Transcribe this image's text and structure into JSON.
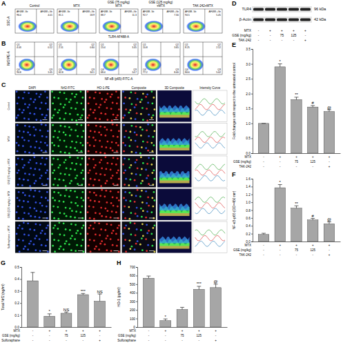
{
  "flow_cytometry": {
    "panel": "A",
    "y_label": "SSC-A",
    "x_label": "TLR4-AF488-A",
    "plots": [
      {
        "title": [
          "Control"
        ],
        "gates": [
          {
            "label": "AF488 -Ve",
            "value": "96.0"
          },
          {
            "label": "AF488 +Ve",
            "value": "4.01"
          }
        ]
      },
      {
        "title": [
          "MTX"
        ],
        "gates": [
          {
            "label": "AF488 -Ve",
            "value": "81.1"
          },
          {
            "label": "AF488 +Ve",
            "value": "18.9"
          }
        ]
      },
      {
        "title": [
          "GSE (75 mg/kg)",
          "MTX"
        ],
        "gates": [
          {
            "label": "AF488 -Ve",
            "value": "88.7"
          },
          {
            "label": "AF488 +Ve",
            "value": "11.3"
          }
        ]
      },
      {
        "title": [
          "GSE (125 mg/kg)",
          "+MTX"
        ],
        "gates": [
          {
            "label": "AF488 -Ve",
            "value": "92.7"
          },
          {
            "label": "AF488 +Ve",
            "value": "7.30"
          }
        ]
      },
      {
        "title": [
          "TAK-242+MTX"
        ],
        "gates": [
          {
            "label": "AF488 -Ve",
            "value": "94.5"
          },
          {
            "label": "AF488 +Ve",
            "value": "5.45"
          }
        ]
      }
    ]
  },
  "quadrant_plots": {
    "panel": "B",
    "y_label": "Nrf2-PE-A",
    "x_label": "NF-κB (p65)-FITC-A",
    "plots": [
      {
        "quadrants": [
          {
            "name": "Q1",
            "value": "4.03"
          },
          {
            "name": "Q2",
            "value": "0.12"
          },
          {
            "name": "Q3",
            "value": "1.05"
          },
          {
            "name": "Q4",
            "value": "94.8"
          }
        ]
      },
      {
        "quadrants": [
          {
            "name": "Q1",
            "value": "2.51"
          },
          {
            "name": "Q2",
            "value": "0.60"
          },
          {
            "name": "Q3",
            "value": "34.1"
          },
          {
            "name": "Q4",
            "value": "62.8"
          }
        ]
      },
      {
        "quadrants": [
          {
            "name": "Q1",
            "value": "13.4"
          },
          {
            "name": "Q2",
            "value": "3.45"
          },
          {
            "name": "Q3",
            "value": "14.7"
          },
          {
            "name": "Q4",
            "value": "68.4"
          }
        ]
      },
      {
        "quadrants": [
          {
            "name": "Q1",
            "value": "10.8"
          },
          {
            "name": "Q2",
            "value": "3.65"
          },
          {
            "name": "Q3",
            "value": "8.40"
          },
          {
            "name": "Q4",
            "value": "77.2"
          }
        ]
      },
      {
        "quadrants": [
          {
            "name": "Q1",
            "value": "8.25"
          },
          {
            "name": "Q2",
            "value": "2.12"
          },
          {
            "name": "Q3",
            "value": "5.02"
          },
          {
            "name": "Q4",
            "value": "84.6"
          }
        ]
      }
    ]
  },
  "microscopy": {
    "panel": "C",
    "columns": [
      "DAPI",
      "Nrf2-FITC",
      "HO-1-PE",
      "Composite",
      "3D Composite",
      "Intensity Curve"
    ],
    "rows": [
      "Control",
      "MTX",
      "GSE (75 mg/kg) + MTX",
      "GSE (125 mg/kg) + MTX",
      "Sulforaphane + MTX"
    ]
  },
  "western_blot": {
    "panel": "D",
    "bands": [
      {
        "label": "TLR4",
        "size": "96 kDa"
      },
      {
        "label": "β-Actin",
        "size": "42 kDa"
      }
    ],
    "treatments": [
      {
        "label": "MTX",
        "values": [
          "-",
          "+",
          "+",
          "+",
          "+"
        ]
      },
      {
        "label": "GSE (mg/kg)",
        "values": [
          "-",
          "-",
          "75",
          "125",
          "-"
        ]
      },
      {
        "label": "TAK-242",
        "values": [
          "-",
          "-",
          "-",
          "-",
          "+"
        ]
      }
    ]
  },
  "chart_data": [
    {
      "panel": "E",
      "type": "bar",
      "y_label": "Fold changes with respect to the untreated control",
      "categories": [
        null,
        null,
        null,
        null,
        null
      ],
      "values": [
        1.0,
        2.9,
        1.8,
        1.55,
        1.4
      ],
      "errors": [
        0,
        0.1,
        0.08,
        0.05,
        0.06
      ],
      "annotations": [
        null,
        "*",
        "**",
        "#",
        "@"
      ],
      "treatments": [
        {
          "label": "MTX",
          "values": [
            "-",
            "+",
            "+",
            "+",
            "+"
          ]
        },
        {
          "label": "GSE (mg/kg)",
          "values": [
            "-",
            "-",
            "75",
            "125",
            "-"
          ]
        },
        {
          "label": "TAK-242",
          "values": [
            "-",
            "-",
            "-",
            "-",
            "+"
          ]
        }
      ],
      "color": "#a6a6a6",
      "ylim": [
        0,
        3.5
      ],
      "yticks": [
        {
          "value": 0,
          "label": "0.0"
        },
        0.5,
        {
          "value": 1,
          "label": "1.0"
        },
        1.5,
        {
          "value": 2,
          "label": "2.0"
        },
        2.5,
        {
          "value": 3,
          "label": "3.0"
        },
        3.5
      ]
    },
    {
      "panel": "F",
      "type": "bar",
      "y_label": "NF-κB-p65 (OD=450 nm)",
      "categories": [
        null,
        null,
        null,
        null,
        null
      ],
      "values": [
        0.18,
        1.37,
        0.85,
        0.55,
        0.45
      ],
      "errors": [
        0.03,
        0.08,
        0.06,
        0.04,
        0.05
      ],
      "annotations": [
        null,
        "*",
        "**",
        "#",
        "@"
      ],
      "treatments": [
        {
          "label": "MTX",
          "values": [
            "-",
            "+",
            "+",
            "+",
            "+"
          ]
        },
        {
          "label": "GSE (mg/kg)",
          "values": [
            "-",
            "-",
            "75",
            "125",
            "-"
          ]
        },
        {
          "label": "TAK-242",
          "values": [
            "-",
            "-",
            "-",
            "-",
            "+"
          ]
        }
      ],
      "color": "#a6a6a6",
      "ylim": [
        0,
        1.6
      ],
      "yticks": [
        {
          "value": 0,
          "label": "0.0"
        },
        0.2,
        0.4,
        0.6,
        0.8,
        {
          "value": 1,
          "label": "1.0"
        },
        1.2,
        1.4,
        1.6
      ]
    },
    {
      "panel": "G",
      "type": "bar",
      "y_label": "Total Nrf2 (ng/ml)",
      "categories": [
        null,
        null,
        null,
        null,
        null
      ],
      "values": [
        0.385,
        0.09,
        0.115,
        0.27,
        0.215
      ],
      "errors": [
        0.07,
        0.02,
        0.01,
        0.01,
        0.06
      ],
      "annotations": [
        null,
        "*",
        "NS",
        "***",
        "NS"
      ],
      "treatments": [
        {
          "label": "MTX",
          "values": [
            "-",
            "+",
            "+",
            "+",
            "+"
          ]
        },
        {
          "label": "GSE (mg/kg)",
          "values": [
            "-",
            "-",
            "75",
            "125",
            "-"
          ]
        },
        {
          "label": "Sulforaphane",
          "values": [
            "-",
            "-",
            "-",
            "-",
            "+"
          ]
        }
      ],
      "color": "#a6a6a6",
      "ylim": [
        0,
        0.5
      ],
      "yticks": [
        {
          "value": 0,
          "label": "0.0"
        },
        0.1,
        0.2,
        0.3,
        0.4,
        0.5
      ]
    },
    {
      "panel": "H",
      "type": "bar",
      "y_label": "HO-1 (pg/ml)",
      "categories": [
        null,
        null,
        null,
        null,
        null
      ],
      "values": [
        570,
        75,
        205,
        440,
        460
      ],
      "errors": [
        25,
        20,
        25,
        35,
        40
      ],
      "annotations": [
        null,
        "*",
        null,
        "***",
        "@"
      ],
      "treatments": [
        {
          "label": "MTX",
          "values": [
            "-",
            "+",
            "+",
            "+",
            "+"
          ]
        },
        {
          "label": "GSE (mg/kg)",
          "values": [
            "-",
            "-",
            "75",
            "125",
            "-"
          ]
        },
        {
          "label": "Sulforaphane",
          "values": [
            "-",
            "-",
            "-",
            "-",
            "+"
          ]
        }
      ],
      "color": "#a6a6a6",
      "ylim": [
        0,
        700
      ],
      "yticks": [
        0,
        100,
        200,
        300,
        400,
        500,
        600,
        700
      ]
    }
  ]
}
